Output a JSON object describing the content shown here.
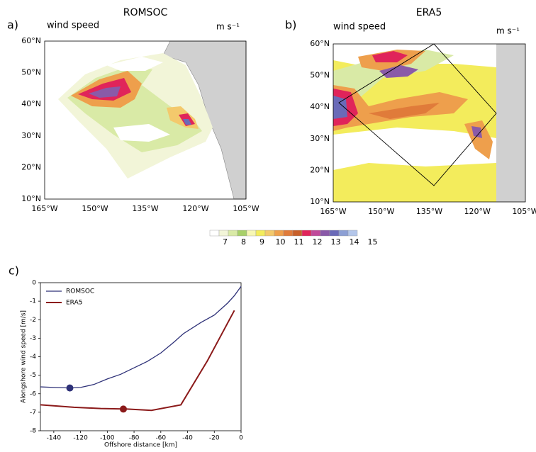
{
  "maps": [
    {
      "label": "a)",
      "title": "ROMSOC",
      "variable": "wind speed",
      "units": "m s⁻¹",
      "lat_ticks": [
        "60°N",
        "50°N",
        "40°N",
        "30°N",
        "20°N",
        "10°N"
      ],
      "lon_ticks": [
        "165°W",
        "150°W",
        "135°W",
        "120°W",
        "105°W"
      ]
    },
    {
      "label": "b)",
      "title": "ERA5",
      "variable": "wind speed",
      "units": "m s⁻¹",
      "lat_ticks": [
        "60°N",
        "50°N",
        "40°N",
        "30°N",
        "20°N",
        "10°N"
      ],
      "lon_ticks": [
        "165°W",
        "150°W",
        "135°W",
        "120°W",
        "105°W"
      ]
    }
  ],
  "colorbar": {
    "colors": [
      "#ffffff",
      "#f2f5d8",
      "#d9eaa6",
      "#a8d06a",
      "#f7f7b5",
      "#f3ec5c",
      "#f3c96c",
      "#ee9f4c",
      "#e07b3a",
      "#c8602a",
      "#e0245a",
      "#c04a9a",
      "#8a5aa8",
      "#6a6ab8",
      "#8c9fd4",
      "#b4c6ea"
    ],
    "labels": [
      "7",
      "8",
      "9",
      "10",
      "11",
      "12",
      "13",
      "14",
      "15"
    ]
  },
  "chart_data": {
    "type": "line",
    "label": "c)",
    "xlabel": "Offshore distance [km]",
    "ylabel": "Alongshore wind speed [m/s]",
    "xlim": [
      -150,
      0
    ],
    "xticks": [
      -140,
      -120,
      -100,
      -80,
      -60,
      -40,
      -20,
      0
    ],
    "ylim": [
      -8,
      0
    ],
    "yticks": [
      -8,
      -7,
      -6,
      -5,
      -4,
      -3,
      -2,
      -1,
      0
    ],
    "legend": "upper left",
    "series": [
      {
        "name": "ROMSOC",
        "color": "#2e3178",
        "x": [
          -150,
          -140,
          -128,
          -120,
          -110,
          -100,
          -90,
          -80,
          -70,
          -60,
          -50,
          -43,
          -30,
          -20,
          -10,
          -5,
          0
        ],
        "values": [
          -5.63,
          -5.66,
          -5.69,
          -5.66,
          -5.5,
          -5.2,
          -4.95,
          -4.6,
          -4.25,
          -3.8,
          -3.2,
          -2.75,
          -2.15,
          -1.75,
          -1.1,
          -0.7,
          -0.2
        ],
        "marker": {
          "x": -128,
          "y": -5.69
        }
      },
      {
        "name": "ERA5",
        "color": "#8b1a1a",
        "x": [
          -150,
          -125,
          -105,
          -85,
          -67,
          -45,
          -25,
          -5
        ],
        "values": [
          -6.6,
          -6.73,
          -6.8,
          -6.83,
          -6.9,
          -6.6,
          -4.2,
          -1.5
        ],
        "marker": {
          "x": -88,
          "y": -6.83
        }
      }
    ]
  }
}
